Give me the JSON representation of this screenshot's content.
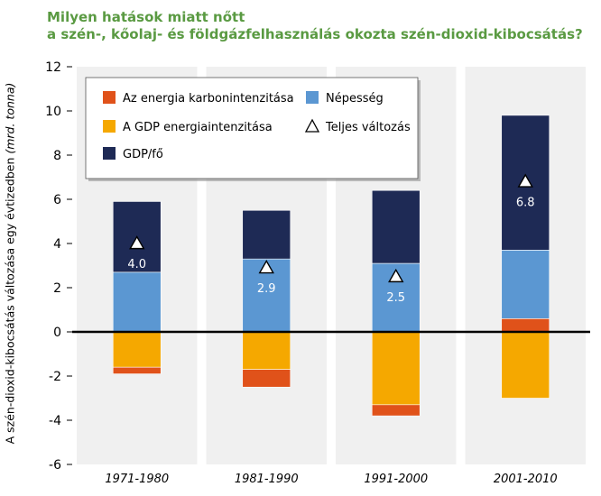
{
  "title_line1": "Milyen hatások miatt nőtt",
  "title_line2": "a szén-, kőolaj- és földgázfelhasználás okozta szén-dioxid-kibocsátás?",
  "colors": {
    "title": "#5a9a42",
    "carbon_intensity": "#e0521a",
    "energy_intensity": "#f5a800",
    "gdp_per_capita": "#1e2a55",
    "population": "#5b97d2",
    "panel_bg": "#f0f0f0"
  },
  "chart_data": {
    "type": "bar",
    "stacked": true,
    "ylabel": "A szén-dioxid-kibocsátás változása egy évtizedben",
    "yunit": "(mrd. tonna)",
    "ylim": [
      -6,
      12
    ],
    "yticks": [
      12,
      10,
      8,
      6,
      4,
      2,
      0,
      -2,
      -4,
      -6
    ],
    "categories": [
      "1971-1980",
      "1981-1990",
      "1991-2000",
      "2001-2010"
    ],
    "series": [
      {
        "name": "A GDP energiaintenzitása",
        "color": "#f5a800",
        "values": [
          -1.6,
          -1.7,
          -3.3,
          -3.0
        ]
      },
      {
        "name": "Az energia karbonintenzitása",
        "color": "#e0521a",
        "values": [
          -0.3,
          -0.8,
          -0.5,
          0.6
        ]
      },
      {
        "name": "Népesség",
        "color": "#5b97d2",
        "values": [
          2.7,
          3.3,
          3.1,
          3.1
        ]
      },
      {
        "name": "GDP/fő",
        "color": "#1e2a55",
        "values": [
          3.2,
          2.2,
          3.3,
          6.1
        ]
      }
    ],
    "total": {
      "name": "Teljes változás",
      "values": [
        4.0,
        2.9,
        2.5,
        6.8
      ],
      "labels": [
        "4.0",
        "2.9",
        "2.5",
        "6.8"
      ]
    },
    "legend": [
      {
        "name": "Az energia karbonintenzitása",
        "color": "#e0521a",
        "marker": "square"
      },
      {
        "name": "Népesség",
        "color": "#5b97d2",
        "marker": "square"
      },
      {
        "name": "A GDP energiaintenzitása",
        "color": "#f5a800",
        "marker": "square"
      },
      {
        "name": "Teljes változás",
        "color": "#ffffff",
        "marker": "triangle"
      },
      {
        "name": "GDP/fő",
        "color": "#1e2a55",
        "marker": "square"
      }
    ],
    "legend_position": "top-left"
  }
}
